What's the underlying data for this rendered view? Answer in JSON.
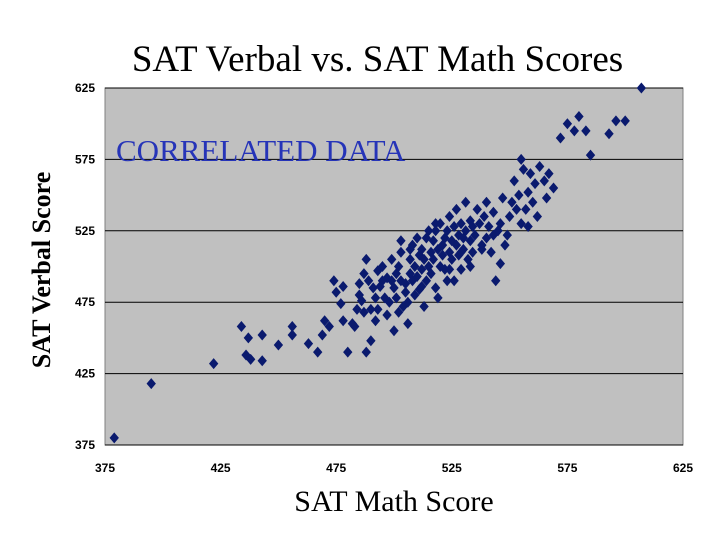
{
  "chart_data": {
    "type": "scatter",
    "title": "SAT Verbal vs. SAT Math Scores",
    "xlabel": "SAT Math Score",
    "ylabel": "SAT Verbal Score",
    "annotation": "CORRELATED DATA",
    "xlim": [
      375,
      625
    ],
    "ylim": [
      375,
      625
    ],
    "xticks": [
      375,
      425,
      475,
      525,
      575,
      625
    ],
    "yticks": [
      375,
      425,
      475,
      525,
      575,
      625
    ],
    "grid": true,
    "colors": {
      "plot_bg": "#c0c0c0",
      "marker": "#0a1a6e",
      "annotation": "#2634b8"
    },
    "points": [
      [
        379,
        380
      ],
      [
        395,
        418
      ],
      [
        422,
        432
      ],
      [
        434,
        458
      ],
      [
        436,
        438
      ],
      [
        437,
        450
      ],
      [
        438,
        435
      ],
      [
        443,
        452
      ],
      [
        443,
        434
      ],
      [
        450,
        445
      ],
      [
        456,
        458
      ],
      [
        456,
        452
      ],
      [
        463,
        446
      ],
      [
        467,
        440
      ],
      [
        469,
        452
      ],
      [
        470,
        462
      ],
      [
        472,
        458
      ],
      [
        474,
        490
      ],
      [
        475,
        482
      ],
      [
        477,
        474
      ],
      [
        478,
        462
      ],
      [
        480,
        440
      ],
      [
        483,
        458
      ],
      [
        485,
        488
      ],
      [
        485,
        480
      ],
      [
        486,
        476
      ],
      [
        487,
        495
      ],
      [
        487,
        468
      ],
      [
        488,
        440
      ],
      [
        489,
        490
      ],
      [
        490,
        448
      ],
      [
        490,
        470
      ],
      [
        491,
        485
      ],
      [
        492,
        478
      ],
      [
        493,
        470
      ],
      [
        493,
        497
      ],
      [
        494,
        486
      ],
      [
        495,
        490
      ],
      [
        496,
        478
      ],
      [
        497,
        466
      ],
      [
        498,
        475
      ],
      [
        499,
        505
      ],
      [
        499,
        490
      ],
      [
        500,
        455
      ],
      [
        500,
        485
      ],
      [
        501,
        495
      ],
      [
        501,
        478
      ],
      [
        502,
        468
      ],
      [
        502,
        500
      ],
      [
        503,
        490
      ],
      [
        503,
        510
      ],
      [
        504,
        472
      ],
      [
        505,
        488
      ],
      [
        505,
        482
      ],
      [
        506,
        460
      ],
      [
        506,
        475
      ],
      [
        507,
        505
      ],
      [
        507,
        495
      ],
      [
        508,
        490
      ],
      [
        508,
        515
      ],
      [
        509,
        480
      ],
      [
        509,
        500
      ],
      [
        510,
        520
      ],
      [
        510,
        493
      ],
      [
        511,
        484
      ],
      [
        511,
        508
      ],
      [
        512,
        498
      ],
      [
        512,
        512
      ],
      [
        513,
        472
      ],
      [
        513,
        505
      ],
      [
        514,
        490
      ],
      [
        514,
        520
      ],
      [
        515,
        525
      ],
      [
        515,
        500
      ],
      [
        516,
        510
      ],
      [
        516,
        495
      ],
      [
        517,
        518
      ],
      [
        517,
        505
      ],
      [
        518,
        525
      ],
      [
        518,
        485
      ],
      [
        519,
        478
      ],
      [
        519,
        512
      ],
      [
        520,
        530
      ],
      [
        520,
        500
      ],
      [
        521,
        515
      ],
      [
        521,
        508
      ],
      [
        522,
        520
      ],
      [
        522,
        498
      ],
      [
        523,
        490
      ],
      [
        523,
        525
      ],
      [
        524,
        510
      ],
      [
        524,
        535
      ],
      [
        525,
        518
      ],
      [
        525,
        505
      ],
      [
        526,
        528
      ],
      [
        526,
        490
      ],
      [
        527,
        515
      ],
      [
        527,
        540
      ],
      [
        528,
        522
      ],
      [
        528,
        508
      ],
      [
        529,
        498
      ],
      [
        529,
        530
      ],
      [
        530,
        512
      ],
      [
        530,
        520
      ],
      [
        531,
        545
      ],
      [
        531,
        525
      ],
      [
        532,
        505
      ],
      [
        533,
        518
      ],
      [
        533,
        532
      ],
      [
        534,
        528
      ],
      [
        534,
        510
      ],
      [
        535,
        522
      ],
      [
        536,
        540
      ],
      [
        537,
        530
      ],
      [
        538,
        515
      ],
      [
        539,
        535
      ],
      [
        540,
        545
      ],
      [
        540,
        520
      ],
      [
        541,
        528
      ],
      [
        542,
        510
      ],
      [
        543,
        538
      ],
      [
        544,
        490
      ],
      [
        545,
        525
      ],
      [
        546,
        530
      ],
      [
        547,
        548
      ],
      [
        548,
        515
      ],
      [
        549,
        522
      ],
      [
        550,
        535
      ],
      [
        551,
        545
      ],
      [
        552,
        560
      ],
      [
        553,
        540
      ],
      [
        554,
        550
      ],
      [
        555,
        575
      ],
      [
        555,
        530
      ],
      [
        556,
        568
      ],
      [
        557,
        540
      ],
      [
        558,
        552
      ],
      [
        559,
        565
      ],
      [
        560,
        545
      ],
      [
        561,
        558
      ],
      [
        562,
        535
      ],
      [
        563,
        570
      ],
      [
        565,
        560
      ],
      [
        566,
        548
      ],
      [
        567,
        565
      ],
      [
        569,
        555
      ],
      [
        572,
        590
      ],
      [
        575,
        600
      ],
      [
        578,
        595
      ],
      [
        580,
        605
      ],
      [
        583,
        595
      ],
      [
        585,
        578
      ],
      [
        593,
        593
      ],
      [
        596,
        602
      ],
      [
        600,
        602
      ],
      [
        607,
        625
      ],
      [
        482,
        460
      ],
      [
        488,
        505
      ],
      [
        495,
        500
      ],
      [
        497,
        492
      ],
      [
        503,
        518
      ],
      [
        507,
        512
      ],
      [
        512,
        486
      ],
      [
        518,
        530
      ],
      [
        524,
        498
      ],
      [
        529,
        510
      ],
      [
        533,
        500
      ],
      [
        538,
        512
      ],
      [
        478,
        486
      ],
      [
        484,
        470
      ],
      [
        492,
        462
      ],
      [
        546,
        502
      ],
      [
        558,
        528
      ],
      [
        543,
        522
      ]
    ]
  }
}
